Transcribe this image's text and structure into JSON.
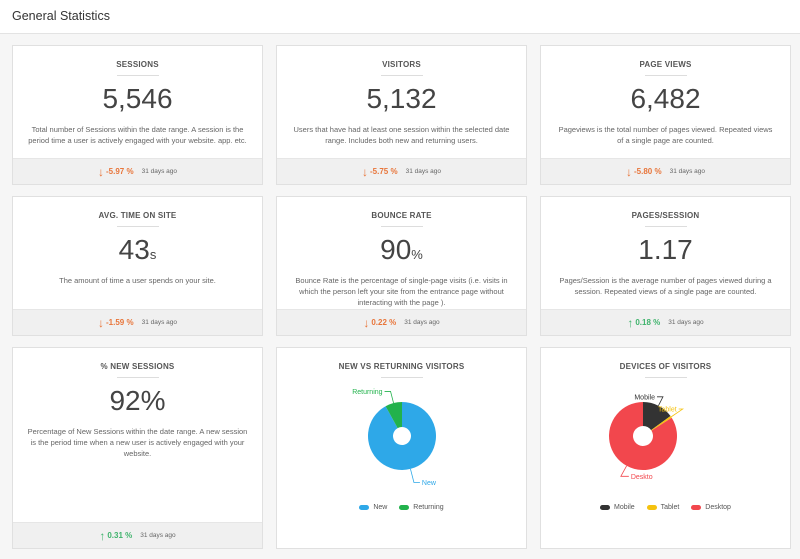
{
  "header": {
    "title": "General Statistics"
  },
  "cards": {
    "sessions": {
      "title": "SESSIONS",
      "value": "5,546",
      "unit": "",
      "desc": "Total number of Sessions within the date range. A session is the period time a user is actively engaged with your website. app. etc.",
      "pct": "-5.97 %",
      "ago": "31 days ago",
      "arrow": "↓"
    },
    "visitors": {
      "title": "VISITORS",
      "value": "5,132",
      "unit": "",
      "desc": "Users that have had at least one session within the selected date range. Includes both new and returning users.",
      "pct": "-5.75 %",
      "ago": "31 days ago",
      "arrow": "↓"
    },
    "pageviews": {
      "title": "PAGE VIEWS",
      "value": "6,482",
      "unit": "",
      "desc": "Pageviews is the total number of pages viewed. Repeated views of a single page are counted.",
      "pct": "-5.80 %",
      "ago": "31 days ago",
      "arrow": "↓"
    },
    "avgtime": {
      "title": "AVG. TIME ON SITE",
      "value": "43",
      "unit": "s",
      "desc": "The amount of time a user spends on your site.",
      "pct": "-1.59 %",
      "ago": "31 days ago",
      "arrow": "↓"
    },
    "bounce": {
      "title": "BOUNCE RATE",
      "value": "90",
      "unit": "%",
      "desc": "Bounce Rate is the percentage of single-page visits (i.e. visits in which the person left your site from the entrance page without interacting with the page ).",
      "pct": "0.22 %",
      "ago": "31 days ago",
      "arrow": "↓"
    },
    "pagessession": {
      "title": "PAGES/SESSION",
      "value": "1.17",
      "unit": "",
      "desc": "Pages/Session is the average number of pages viewed during a session. Repeated views of a single page are counted.",
      "pct": "0.18 %",
      "ago": "31 days ago",
      "arrow": "↑"
    },
    "newsessions": {
      "title": "% NEW SESSIONS",
      "value": "92%",
      "unit": "",
      "desc": "Percentage of New Sessions within the date range. A new session is the period time when a new user is actively engaged with your website.",
      "pct": "0.31 %",
      "ago": "31 days ago",
      "arrow": "↑"
    }
  },
  "colors": {
    "down": "#e8753a",
    "up": "#3fb36c",
    "new": "#2ea8e8",
    "returning": "#22b24c",
    "mobile": "#333333",
    "tablet": "#f5c20f",
    "desktop": "#f2474d"
  },
  "chart_data": [
    {
      "type": "pie",
      "title": "NEW VS RETURNING VISITORS",
      "categories": [
        "New",
        "Returning"
      ],
      "values": [
        92,
        8
      ],
      "slice_labels": [
        "New",
        "Returning"
      ],
      "legend": [
        "New",
        "Returning"
      ],
      "legend_position": "bottom"
    },
    {
      "type": "pie",
      "title": "DEVICES OF VISITORS",
      "categories": [
        "Mobile",
        "Tablet",
        "Desktop"
      ],
      "values": [
        15,
        1,
        84
      ],
      "slice_labels": [
        "Mobile",
        "Tablet",
        "Deskto"
      ],
      "legend": [
        "Mobile",
        "Tablet",
        "Desktop"
      ],
      "legend_position": "bottom"
    }
  ]
}
